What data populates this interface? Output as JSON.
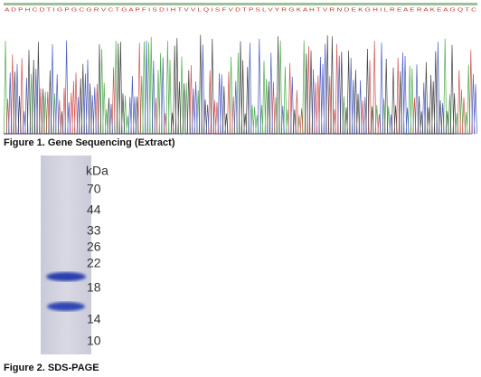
{
  "figure1": {
    "sequence": "A D P H C D T I G P G C G R V C T G A P F I S D I H T V V L Q I S F V D T P S L V Y R G K A H T V R N D E K G H I L R E A E R A K E A G Q T C",
    "caption": "Figure 1. Gene Sequencing (Extract)"
  },
  "figure2": {
    "unit": "kDa",
    "markers": [
      "70",
      "44",
      "33",
      "26",
      "22",
      "18",
      "14",
      "10"
    ],
    "caption": "Figure 2. SDS-PAGE"
  }
}
